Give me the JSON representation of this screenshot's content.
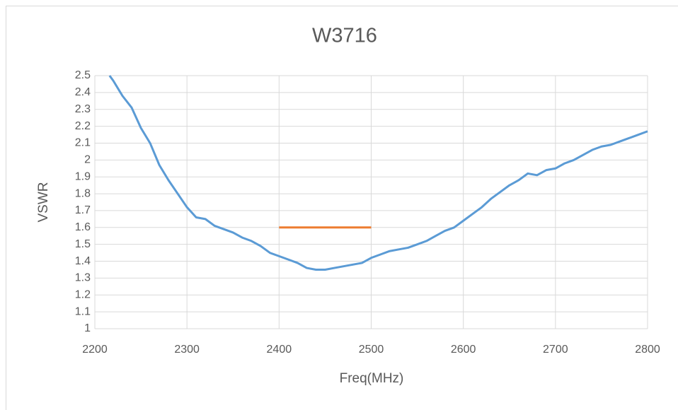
{
  "chart_data": {
    "type": "line",
    "title": "W3716",
    "xlabel": "Freq(MHz)",
    "ylabel": "VSWR",
    "xlim": [
      2200,
      2800
    ],
    "xticks": [
      2200,
      2300,
      2400,
      2500,
      2600,
      2700,
      2800
    ],
    "ylim": [
      1,
      2.5
    ],
    "yticks": [
      1,
      1.1,
      1.2,
      1.3,
      1.4,
      1.5,
      1.6,
      1.7,
      1.8,
      1.9,
      2,
      2.1,
      2.2,
      2.3,
      2.4,
      2.5
    ],
    "grid": true,
    "series": [
      {
        "color": "#5b9bd5",
        "x": [
          2216,
          2220,
          2230,
          2240,
          2250,
          2260,
          2270,
          2280,
          2290,
          2300,
          2310,
          2320,
          2330,
          2340,
          2350,
          2360,
          2370,
          2380,
          2390,
          2400,
          2410,
          2420,
          2430,
          2440,
          2450,
          2460,
          2470,
          2480,
          2490,
          2500,
          2510,
          2520,
          2530,
          2540,
          2550,
          2560,
          2570,
          2580,
          2590,
          2600,
          2610,
          2620,
          2630,
          2640,
          2650,
          2660,
          2670,
          2680,
          2690,
          2700,
          2710,
          2720,
          2730,
          2740,
          2750,
          2760,
          2770,
          2780,
          2790,
          2800
        ],
        "values": [
          2.5,
          2.47,
          2.38,
          2.31,
          2.19,
          2.1,
          1.97,
          1.88,
          1.8,
          1.72,
          1.66,
          1.65,
          1.61,
          1.59,
          1.57,
          1.54,
          1.52,
          1.49,
          1.45,
          1.43,
          1.41,
          1.39,
          1.36,
          1.35,
          1.35,
          1.36,
          1.37,
          1.38,
          1.39,
          1.42,
          1.44,
          1.46,
          1.47,
          1.48,
          1.5,
          1.52,
          1.55,
          1.58,
          1.6,
          1.64,
          1.68,
          1.72,
          1.77,
          1.81,
          1.85,
          1.88,
          1.92,
          1.91,
          1.94,
          1.95,
          1.98,
          2,
          2.03,
          2.06,
          2.08,
          2.09,
          2.11,
          2.13,
          2.15,
          2.17
        ]
      },
      {
        "color": "#ed7d31",
        "x": [
          2400,
          2500
        ],
        "values": [
          1.6,
          1.6
        ]
      }
    ]
  }
}
